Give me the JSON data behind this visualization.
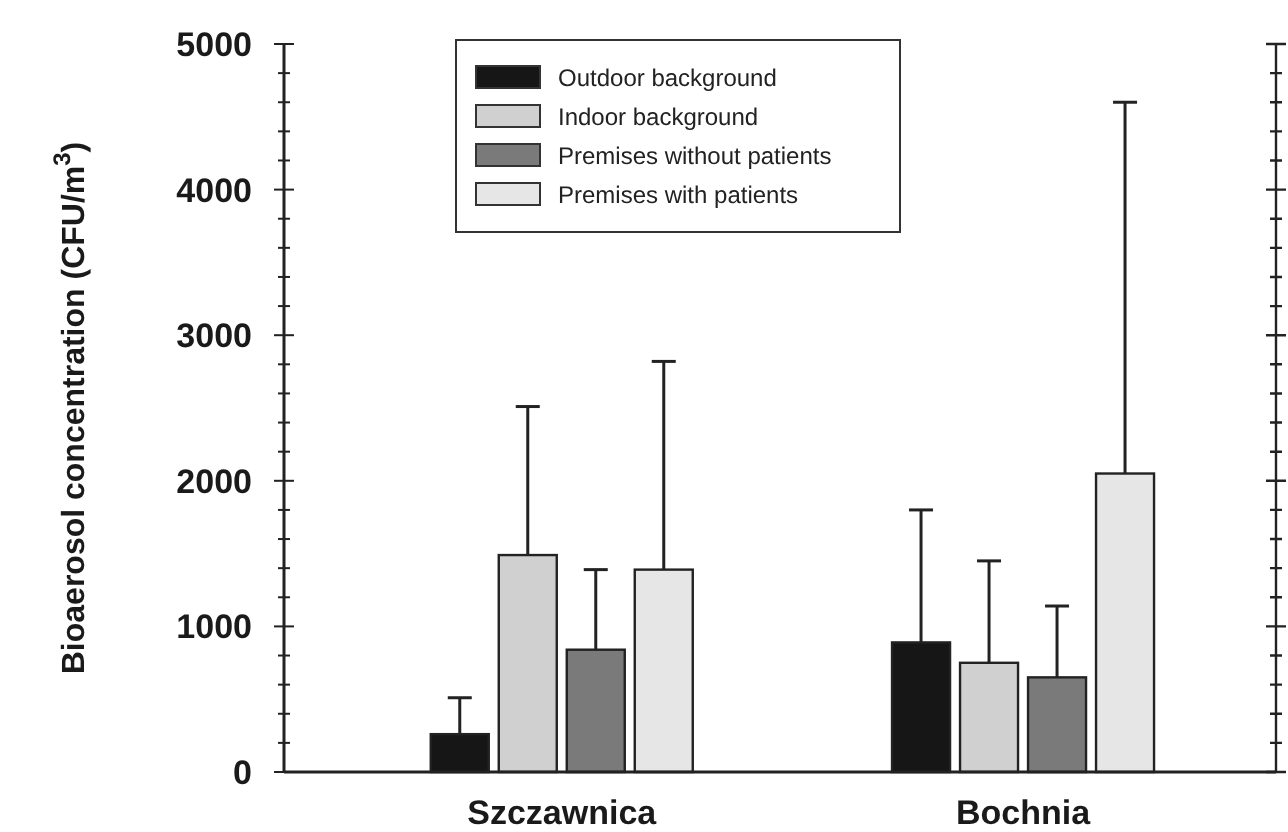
{
  "chart_data": {
    "type": "bar",
    "ylabel": "Bioaerosol concentration (CFU/m$^{3}$)",
    "categories": [
      "Szczawnica",
      "Bochnia"
    ],
    "series": [
      {
        "name": "Outdoor background",
        "color": "#161616",
        "values": [
          260,
          890
        ],
        "errors": [
          [
            260,
            510
          ],
          [
            890,
            1800
          ]
        ]
      },
      {
        "name": "Indoor background",
        "color": "#d0d0d0",
        "values": [
          1490,
          750
        ],
        "errors": [
          [
            1490,
            2510
          ],
          [
            750,
            1450
          ]
        ]
      },
      {
        "name": "Premises without patients",
        "color": "#7a7a7a",
        "values": [
          840,
          650
        ],
        "errors": [
          [
            840,
            1390
          ],
          [
            650,
            1140
          ]
        ]
      },
      {
        "name": "Premises with patients",
        "color": "#e6e6e6",
        "values": [
          1390,
          2050
        ],
        "errors": [
          [
            1390,
            2820
          ],
          [
            2050,
            4600
          ]
        ]
      }
    ],
    "ylim": [
      0,
      5000
    ],
    "yticks": [
      0,
      {
        "value": 200,
        "label": null
      },
      {
        "value": 400,
        "label": null
      },
      {
        "value": 600,
        "label": null
      },
      {
        "value": 800,
        "label": null
      },
      1000,
      {
        "value": 1200,
        "label": null
      },
      {
        "value": 1400,
        "label": null
      },
      {
        "value": 1600,
        "label": null
      },
      {
        "value": 1800,
        "label": null
      },
      2000,
      {
        "value": 2200,
        "label": null
      },
      {
        "value": 2400,
        "label": null
      },
      {
        "value": 2600,
        "label": null
      },
      {
        "value": 2800,
        "label": null
      },
      3000,
      {
        "value": 3200,
        "label": null
      },
      {
        "value": 3400,
        "label": null
      },
      {
        "value": 3600,
        "label": null
      },
      {
        "value": 3800,
        "label": null
      },
      4000,
      {
        "value": 4200,
        "label": null
      },
      {
        "value": 4400,
        "label": null
      },
      {
        "value": 4600,
        "label": null
      },
      {
        "value": 4800,
        "label": null
      },
      5000
    ],
    "grid": false,
    "legend": "top"
  }
}
